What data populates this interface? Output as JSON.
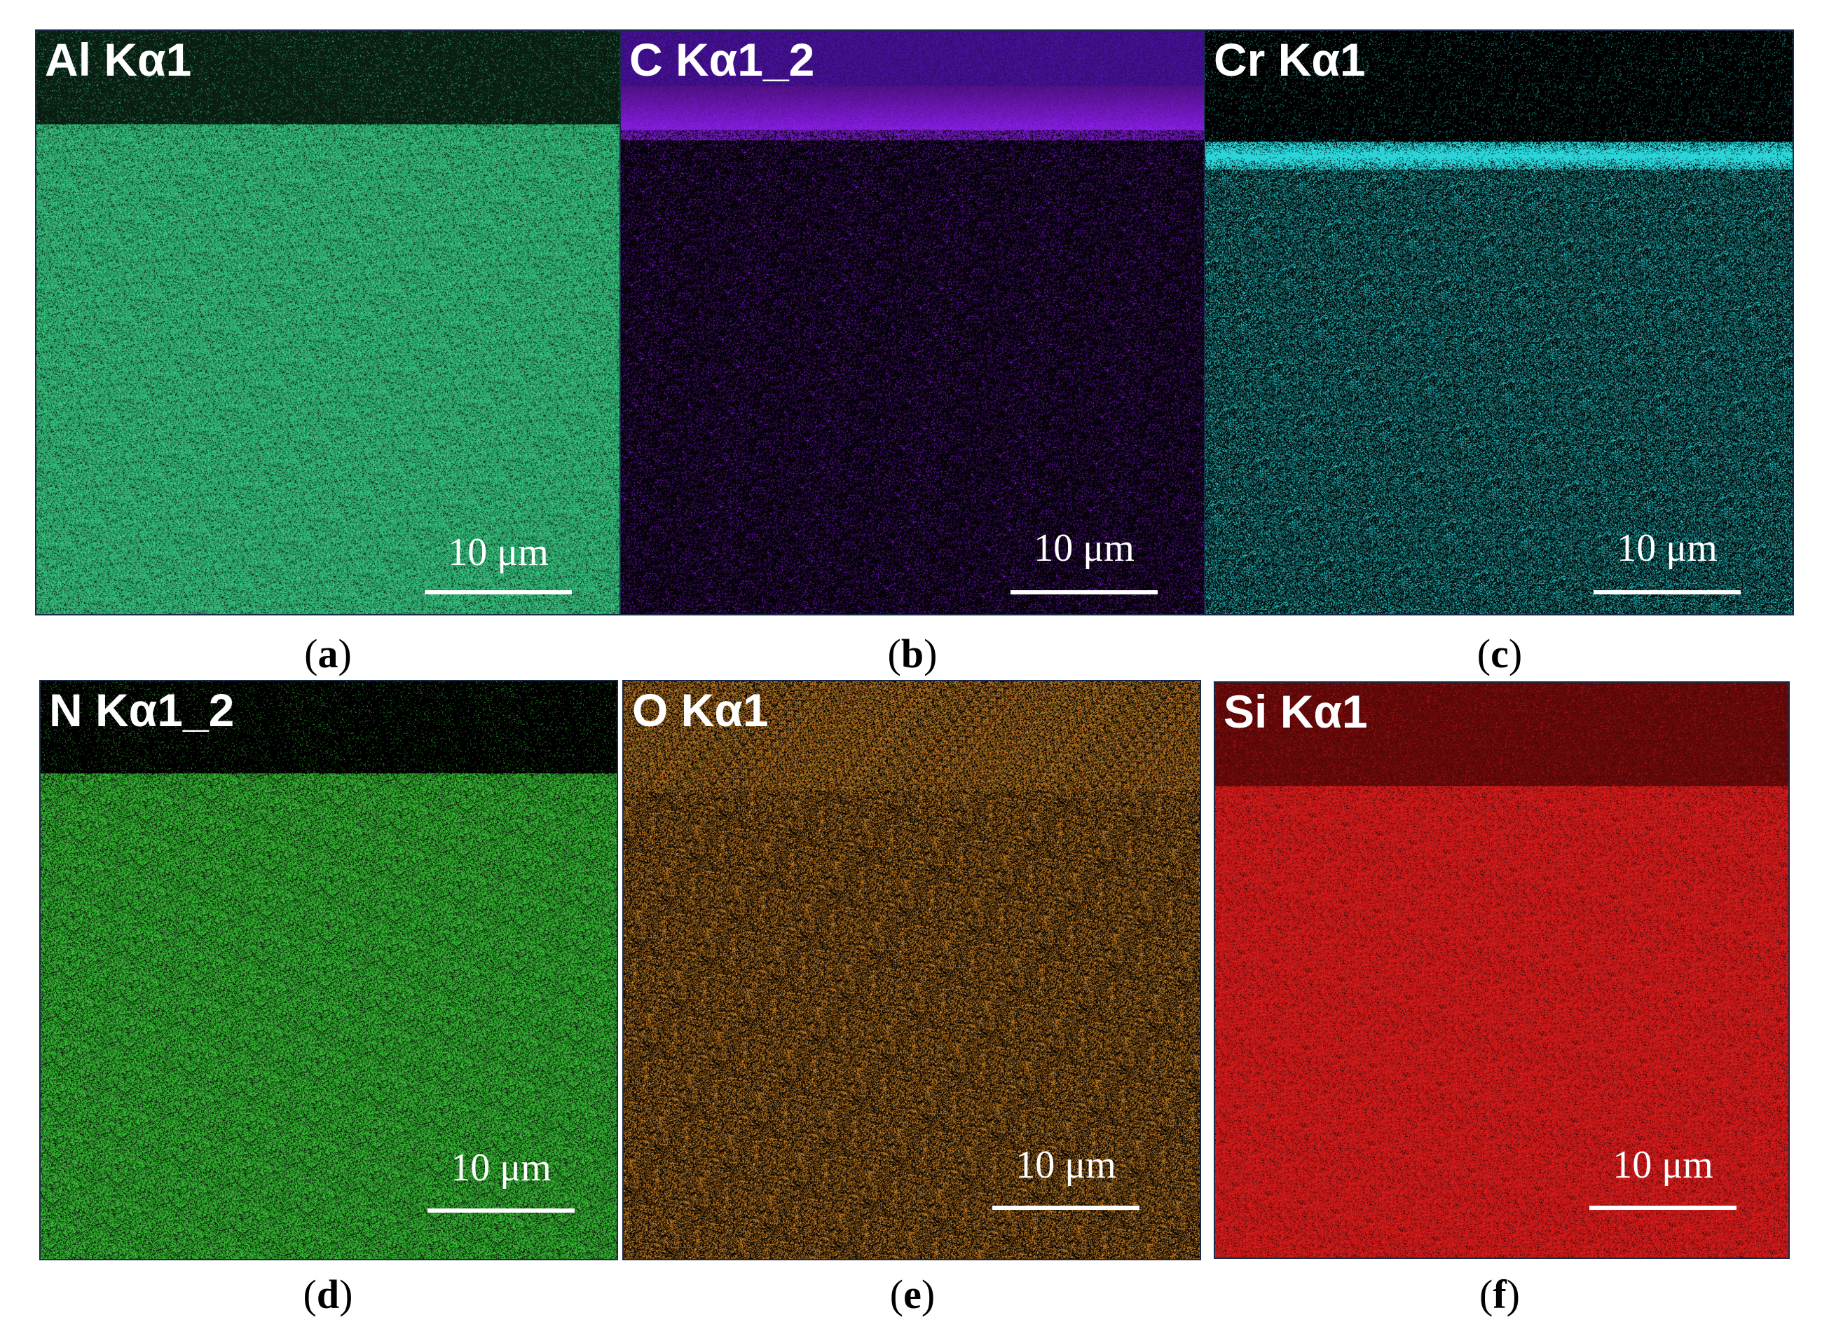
{
  "panels": [
    {
      "id": "a",
      "label": "Al Kα1",
      "scale_text": "10 μm",
      "caption_letter": "a",
      "color": "#3ad48a",
      "layer_color": "#0c2416",
      "layer_end": 0.16,
      "interface": "bright-below",
      "density_below": 0.9
    },
    {
      "id": "b",
      "label": "C Kα1_2",
      "scale_text": "10 μm",
      "caption_letter": "b",
      "color": "#8a1ee8",
      "layer_color": "#4a12a0",
      "layer_end": 0.17,
      "interface": "bright-band",
      "density_below": 0.12
    },
    {
      "id": "c",
      "label": "Cr Kα1",
      "scale_text": "10 μm",
      "caption_letter": "c",
      "color": "#2ad4d8",
      "layer_color": "#000000",
      "layer_end": 0.19,
      "interface": "cyan-band",
      "density_below": 0.35
    },
    {
      "id": "d",
      "label": "N Kα1_2",
      "scale_text": "10 μm",
      "caption_letter": "d",
      "color": "#3ccc3a",
      "layer_color": "#000000",
      "layer_end": 0.16,
      "interface": "bright-below",
      "density_below": 0.75
    },
    {
      "id": "e",
      "label": "O Kα1",
      "scale_text": "10 μm",
      "caption_letter": "e",
      "color": "#d98c2a",
      "layer_color": "#000000",
      "layer_end": 0.19,
      "interface": "dense-top",
      "density_below": 0.45
    },
    {
      "id": "f",
      "label": "Si Kα1",
      "scale_text": "10 μm",
      "caption_letter": "f",
      "color": "#f01e1e",
      "layer_color": "#6e0a0a",
      "layer_end": 0.18,
      "interface": "bright-below",
      "density_below": 0.95
    }
  ]
}
